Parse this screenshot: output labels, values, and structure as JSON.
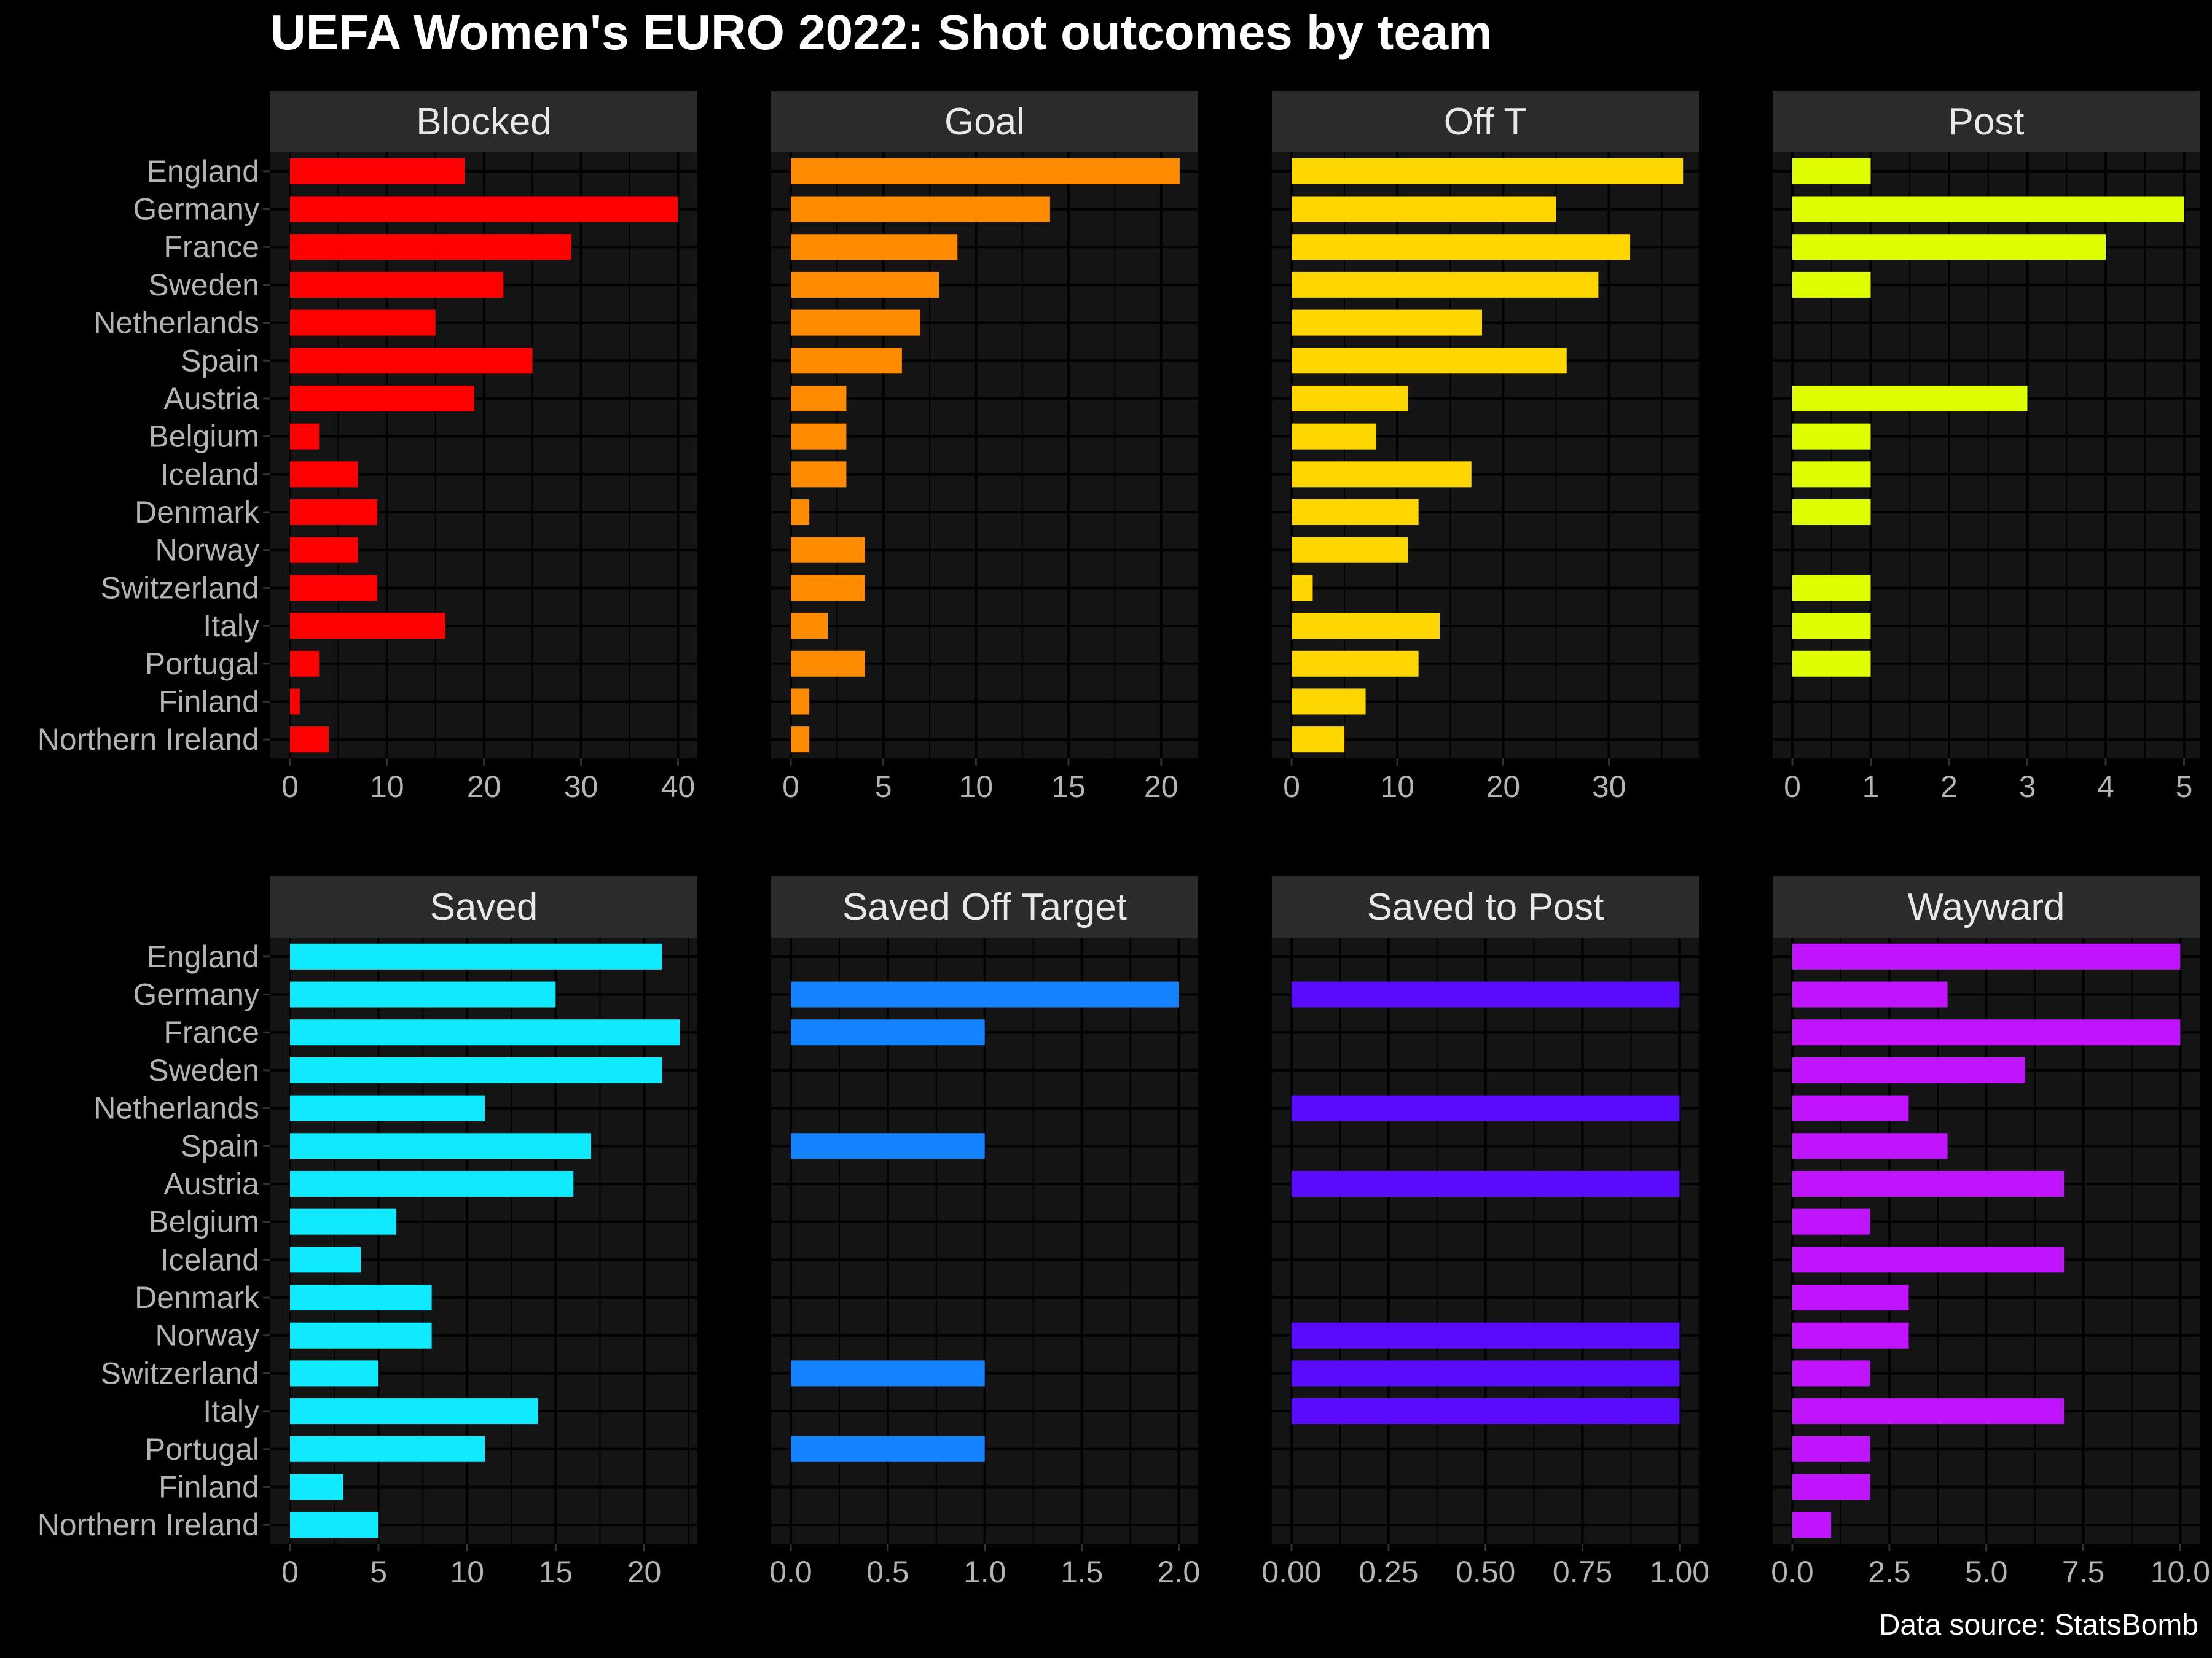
{
  "title": "UEFA Women's EURO 2022: Shot outcomes by team",
  "caption": "Data source: StatsBomb",
  "colors": {
    "background": "#000000",
    "panel": "#141414",
    "strip": "#2b2b2b",
    "grid": "#000000",
    "tick_text": "#b3b3b3",
    "strip_text": "#e8e8e8"
  },
  "chart_data": {
    "type": "bar",
    "orientation": "horizontal",
    "layout": "facets 2 rows x 4 columns",
    "categories": [
      "England",
      "Germany",
      "France",
      "Sweden",
      "Netherlands",
      "Spain",
      "Austria",
      "Belgium",
      "Iceland",
      "Denmark",
      "Norway",
      "Switzerland",
      "Italy",
      "Portugal",
      "Finland",
      "Northern Ireland"
    ],
    "grid": true,
    "legend": "none",
    "series": [
      {
        "name": "Blocked",
        "color": "#ff0000",
        "xlim": [
          0,
          42
        ],
        "ticks": [
          0,
          10,
          20,
          30,
          40
        ],
        "tick_labels": [
          "0",
          "10",
          "20",
          "30",
          "40"
        ],
        "values": [
          18,
          40,
          29,
          22,
          15,
          25,
          19,
          3,
          7,
          9,
          7,
          9,
          16,
          3,
          1,
          4
        ]
      },
      {
        "name": "Goal",
        "color": "#ff8c00",
        "xlim": [
          0,
          22
        ],
        "ticks": [
          0,
          5,
          10,
          15,
          20
        ],
        "tick_labels": [
          "0",
          "5",
          "10",
          "15",
          "20"
        ],
        "values": [
          21,
          14,
          9,
          8,
          7,
          6,
          3,
          3,
          3,
          1,
          4,
          4,
          2,
          4,
          1,
          1
        ]
      },
      {
        "name": "Off T",
        "color": "#ffd700",
        "xlim": [
          0,
          38.5
        ],
        "ticks": [
          0,
          10,
          20,
          30
        ],
        "tick_labels": [
          "0",
          "10",
          "20",
          "30"
        ],
        "values": [
          37,
          25,
          32,
          29,
          18,
          26,
          11,
          8,
          17,
          12,
          11,
          2,
          14,
          12,
          7,
          5
        ]
      },
      {
        "name": "Post",
        "color": "#dfff00",
        "xlim": [
          0,
          5.2
        ],
        "ticks": [
          0,
          1,
          2,
          3,
          4,
          5
        ],
        "tick_labels": [
          "0",
          "1",
          "2",
          "3",
          "4",
          "5"
        ],
        "values": [
          1,
          5,
          4,
          1,
          0,
          0,
          3,
          1,
          1,
          1,
          0,
          1,
          1,
          1,
          0,
          0
        ]
      },
      {
        "name": "Saved",
        "color": "#0feaff",
        "xlim": [
          0,
          23
        ],
        "ticks": [
          0,
          5,
          10,
          15,
          20
        ],
        "tick_labels": [
          "0",
          "5",
          "10",
          "15",
          "20"
        ],
        "values": [
          21,
          15,
          22,
          21,
          11,
          17,
          16,
          6,
          4,
          8,
          8,
          5,
          14,
          11,
          3,
          5
        ]
      },
      {
        "name": "Saved Off Target",
        "color": "#1483ff",
        "xlim": [
          0,
          2.1
        ],
        "ticks": [
          0,
          0.5,
          1,
          1.5,
          2
        ],
        "tick_labels": [
          "0.0",
          "0.5",
          "1.0",
          "1.5",
          "2.0"
        ],
        "values": [
          0,
          2,
          1,
          0,
          0,
          1,
          0,
          0,
          0,
          0,
          0,
          1,
          0,
          1,
          0,
          0
        ]
      },
      {
        "name": "Saved to Post",
        "color": "#5b0cff",
        "xlim": [
          0,
          1.05
        ],
        "ticks": [
          0,
          0.25,
          0.5,
          0.75,
          1
        ],
        "tick_labels": [
          "0.00",
          "0.25",
          "0.50",
          "0.75",
          "1.00"
        ],
        "values": [
          0,
          1,
          0,
          0,
          1,
          0,
          1,
          0,
          0,
          0,
          1,
          1,
          1,
          0,
          0,
          0
        ]
      },
      {
        "name": "Wayward",
        "color": "#c014ff",
        "xlim": [
          0,
          10.5
        ],
        "ticks": [
          0,
          2.5,
          5,
          7.5,
          10
        ],
        "tick_labels": [
          "0.0",
          "2.5",
          "5.0",
          "7.5",
          "10.0"
        ],
        "values": [
          10,
          4,
          10,
          6,
          3,
          4,
          7,
          2,
          7,
          3,
          3,
          2,
          7,
          2,
          2,
          1
        ]
      }
    ]
  }
}
